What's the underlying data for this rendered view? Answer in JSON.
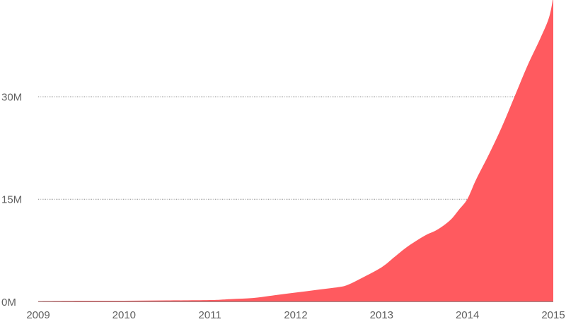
{
  "chart_data": {
    "type": "area",
    "title": "",
    "xlabel": "",
    "ylabel": "",
    "x_ticks": [
      "2009",
      "2010",
      "2011",
      "2012",
      "2013",
      "2014",
      "2015"
    ],
    "y_ticks": [
      "0M",
      "15M",
      "30M"
    ],
    "y_tick_values": [
      0,
      15,
      30
    ],
    "xlim": [
      2009,
      2015
    ],
    "ylim": [
      0,
      44.5
    ],
    "grid": "horizontal dotted",
    "legend": "none",
    "series": [
      {
        "color": "#ff5a5f",
        "x": [
          2009.0,
          2009.5,
          2010.0,
          2010.5,
          2011.0,
          2011.25,
          2011.5,
          2011.75,
          2012.0,
          2012.25,
          2012.5,
          2012.6,
          2012.75,
          2013.0,
          2013.15,
          2013.3,
          2013.5,
          2013.65,
          2013.8,
          2013.9,
          2014.0,
          2014.1,
          2014.25,
          2014.4,
          2014.55,
          2014.7,
          2014.85,
          2014.95,
          2015.0
        ],
        "values": [
          0.05,
          0.1,
          0.1,
          0.15,
          0.2,
          0.35,
          0.5,
          0.9,
          1.3,
          1.7,
          2.1,
          2.4,
          3.3,
          5.0,
          6.5,
          8.0,
          9.6,
          10.5,
          11.9,
          13.4,
          15.0,
          17.8,
          21.5,
          25.5,
          30.0,
          34.5,
          38.5,
          41.5,
          44.5
        ]
      }
    ]
  }
}
